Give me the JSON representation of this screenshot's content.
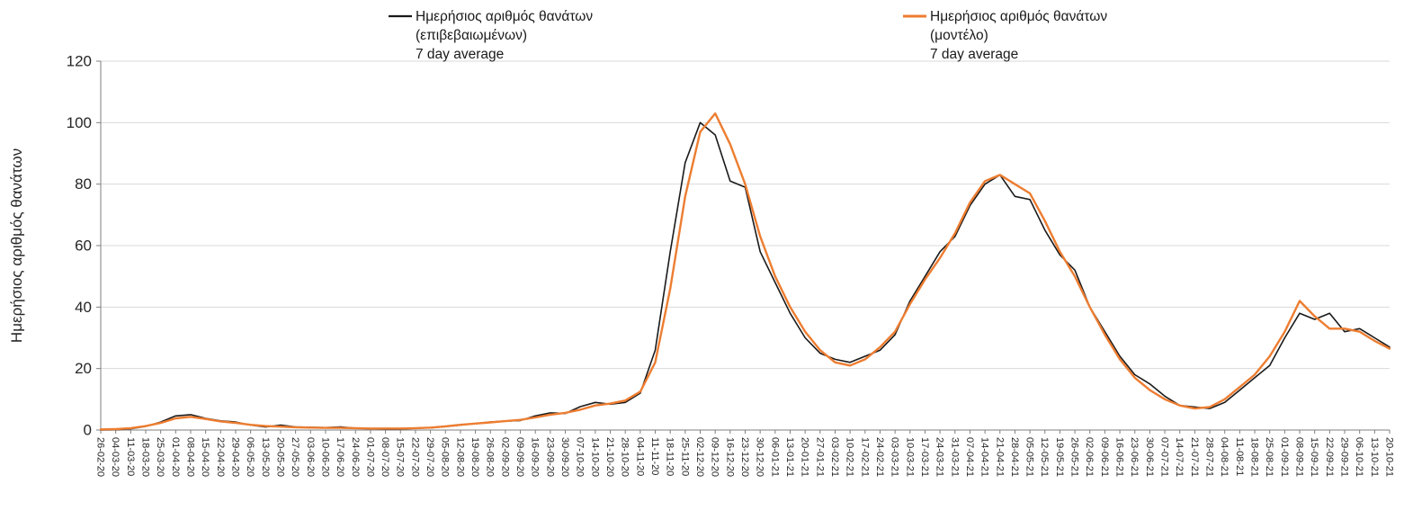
{
  "chart_data": {
    "type": "line",
    "title": "",
    "xlabel": "",
    "ylabel": "Ημερήσιος αριθμός θανάτων",
    "ylim": [
      0,
      120
    ],
    "yticks": [
      0,
      20,
      40,
      60,
      80,
      100,
      120
    ],
    "grid": true,
    "legend_position": "top",
    "background": "#ffffff",
    "grid_color": "#d9d9d9",
    "axis_color": "#7f7f7f",
    "categories": [
      "26-02-20",
      "04-03-20",
      "11-03-20",
      "18-03-20",
      "25-03-20",
      "01-04-20",
      "08-04-20",
      "15-04-20",
      "22-04-20",
      "29-04-20",
      "06-05-20",
      "13-05-20",
      "20-05-20",
      "27-05-20",
      "03-06-20",
      "10-06-20",
      "17-06-20",
      "24-06-20",
      "01-07-20",
      "08-07-20",
      "15-07-20",
      "22-07-20",
      "29-07-20",
      "05-08-20",
      "12-08-20",
      "19-08-20",
      "26-08-20",
      "02-09-20",
      "09-09-20",
      "16-09-20",
      "23-09-20",
      "30-09-20",
      "07-10-20",
      "14-10-20",
      "21-10-20",
      "28-10-20",
      "04-11-20",
      "11-11-20",
      "18-11-20",
      "25-11-20",
      "02-12-20",
      "09-12-20",
      "16-12-20",
      "23-12-20",
      "30-12-20",
      "06-01-21",
      "13-01-21",
      "20-01-21",
      "27-01-21",
      "03-02-21",
      "10-02-21",
      "17-02-21",
      "24-02-21",
      "03-03-21",
      "10-03-21",
      "17-03-21",
      "24-03-21",
      "31-03-21",
      "07-04-21",
      "14-04-21",
      "21-04-21",
      "28-04-21",
      "05-05-21",
      "12-05-21",
      "19-05-21",
      "26-05-21",
      "02-06-21",
      "09-06-21",
      "16-06-21",
      "23-06-21",
      "30-06-21",
      "07-07-21",
      "14-07-21",
      "21-07-21",
      "28-07-21",
      "04-08-21",
      "11-08-21",
      "18-08-21",
      "25-08-21",
      "01-09-21",
      "08-09-21",
      "15-09-21",
      "22-09-21",
      "29-09-21",
      "06-10-21",
      "13-10-21",
      "20-10-21"
    ],
    "series": [
      {
        "name": "Ημερήσιος αριθμός θανάτων (επιβεβαιωμένων) 7 day average",
        "legend_lines": [
          "Ημερήσιος αριθμός θανάτων",
          "(επιβεβαιωμένων)",
          "7 day average"
        ],
        "color": "#1a1a1a",
        "stroke_width": 1.6,
        "values": [
          0,
          0.1,
          0.4,
          1.2,
          2.6,
          4.6,
          5.0,
          3.8,
          3.0,
          2.6,
          1.6,
          1.0,
          1.6,
          1.0,
          0.9,
          0.8,
          1.0,
          0.6,
          0.4,
          0.3,
          0.3,
          0.6,
          0.7,
          1.1,
          1.6,
          2.1,
          2.6,
          2.9,
          3.1,
          4.6,
          5.6,
          5.4,
          7.6,
          9.0,
          8.4,
          9.0,
          12,
          26,
          58,
          87,
          100,
          96,
          81,
          79,
          58,
          48,
          38,
          30,
          25,
          23,
          22,
          24,
          26,
          31,
          42,
          50,
          58,
          63,
          73,
          80,
          83,
          76,
          75,
          65,
          57,
          52,
          40,
          32,
          24,
          18,
          15,
          11,
          8,
          7.5,
          7,
          9,
          13,
          17,
          21,
          30,
          38,
          36,
          38,
          32,
          33,
          30,
          27
        ]
      },
      {
        "name": "Ημερήσιος αριθμός θανάτων (μοντέλο) 7 day average",
        "legend_lines": [
          "Ημερήσιος αριθμός θανάτων",
          "(μοντέλο)",
          "7 day average"
        ],
        "color": "#ED7D31",
        "stroke_width": 2.4,
        "values": [
          0.2,
          0.3,
          0.6,
          1.3,
          2.3,
          3.8,
          4.3,
          3.6,
          2.8,
          2.3,
          1.7,
          1.3,
          1.1,
          0.9,
          0.8,
          0.7,
          0.7,
          0.6,
          0.5,
          0.5,
          0.5,
          0.6,
          0.8,
          1.2,
          1.7,
          2.1,
          2.5,
          2.9,
          3.3,
          4.1,
          5.0,
          5.6,
          6.6,
          8.0,
          8.6,
          9.6,
          12.5,
          22,
          46,
          76,
          97,
          103,
          93,
          80,
          63,
          50,
          40,
          32,
          26,
          22,
          21,
          23,
          27,
          32,
          41,
          49,
          56,
          64,
          74,
          81,
          83,
          80,
          77,
          68,
          58,
          50,
          40,
          31,
          23,
          17,
          13,
          10,
          8,
          7,
          7.5,
          10,
          14,
          18,
          24,
          32,
          42,
          37,
          33,
          33,
          32,
          29,
          26.5
        ]
      }
    ]
  }
}
